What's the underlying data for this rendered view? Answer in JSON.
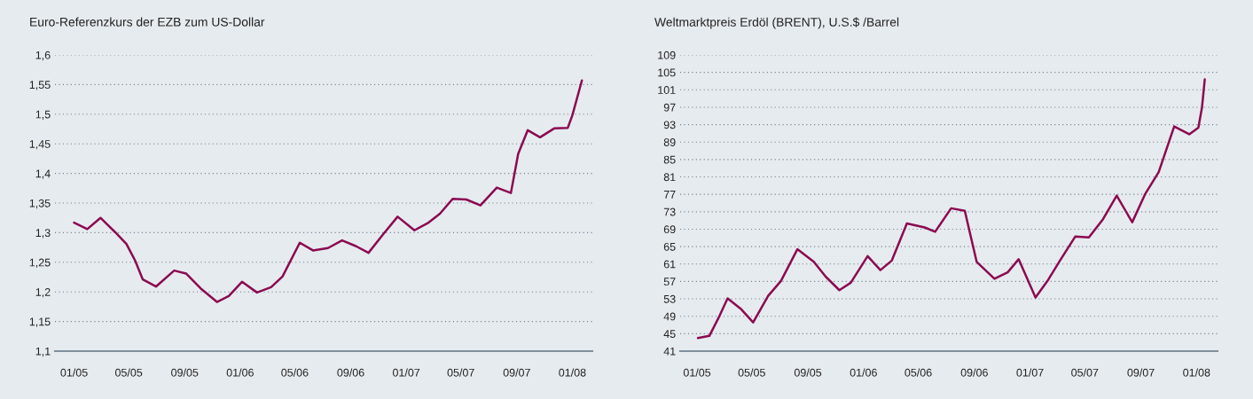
{
  "chart_data": [
    {
      "type": "line",
      "title": "Euro-Referenzkurs der EZB zum US-Dollar",
      "grid": "y",
      "line_style": "solid",
      "xlim": [
        "2004-11-20",
        "2008-02-14"
      ],
      "ylim": [
        1.1,
        1.6
      ],
      "xticks": [
        {
          "value": "2005-01",
          "label": "01/05"
        },
        {
          "value": "2005-05",
          "label": "05/05"
        },
        {
          "value": "2005-09",
          "label": "09/05"
        },
        {
          "value": "2006-01",
          "label": "01/06"
        },
        {
          "value": "2006-05",
          "label": "05/06"
        },
        {
          "value": "2006-09",
          "label": "09/06"
        },
        {
          "value": "2007-01",
          "label": "01/07"
        },
        {
          "value": "2007-05",
          "label": "05/07"
        },
        {
          "value": "2007-09",
          "label": "09/07"
        },
        {
          "value": "2008-01",
          "label": "01/08"
        }
      ],
      "yticks": [
        {
          "value": 1.1,
          "label": "1,1"
        },
        {
          "value": 1.15,
          "label": "1,15"
        },
        {
          "value": 1.2,
          "label": "1,2"
        },
        {
          "value": 1.25,
          "label": "1,25"
        },
        {
          "value": 1.3,
          "label": "1,3"
        },
        {
          "value": 1.35,
          "label": "1,35"
        },
        {
          "value": 1.4,
          "label": "1,4"
        },
        {
          "value": 1.45,
          "label": "1,45"
        },
        {
          "value": 1.5,
          "label": "1,5"
        },
        {
          "value": 1.55,
          "label": "1,55"
        },
        {
          "value": 1.6,
          "label": "1,6"
        }
      ],
      "series": [
        {
          "color": "#8b0a50",
          "x": [
            "2005-01-01",
            "2005-01-30",
            "2005-02-28",
            "2005-04-01",
            "2005-04-26",
            "2005-05-15",
            "2005-06-01",
            "2005-06-30",
            "2005-08-09",
            "2005-09-04",
            "2005-10-06",
            "2005-11-11",
            "2005-12-07",
            "2006-01-05",
            "2006-02-07",
            "2006-03-10",
            "2006-04-04",
            "2006-05-12",
            "2006-06-10",
            "2006-07-13",
            "2006-08-13",
            "2006-09-13",
            "2006-10-10",
            "2006-11-10",
            "2006-12-13",
            "2007-01-19",
            "2007-02-19",
            "2007-03-16",
            "2007-04-13",
            "2007-05-13",
            "2007-06-13",
            "2007-07-19",
            "2007-08-19",
            "2007-09-04",
            "2007-09-25",
            "2007-10-22",
            "2007-11-22",
            "2007-12-22",
            "2008-01-01",
            "2008-01-22"
          ],
          "values": [
            1.317,
            1.306,
            1.325,
            1.301,
            1.281,
            1.253,
            1.221,
            1.209,
            1.236,
            1.231,
            1.206,
            1.183,
            1.193,
            1.217,
            1.199,
            1.208,
            1.226,
            1.283,
            1.27,
            1.274,
            1.287,
            1.277,
            1.266,
            1.296,
            1.327,
            1.304,
            1.317,
            1.332,
            1.357,
            1.356,
            1.346,
            1.376,
            1.367,
            1.433,
            1.473,
            1.461,
            1.476,
            1.477,
            1.498,
            1.557
          ]
        }
      ]
    },
    {
      "type": "line",
      "title": "Weltmarktpreis Erdöl (BRENT), U.S.$ /Barrel",
      "grid": "y",
      "line_style": "solid",
      "xlim": [
        "2004-11-25",
        "2008-02-16"
      ],
      "ylim": [
        41,
        109
      ],
      "xticks": [
        {
          "value": "2005-01",
          "label": "01/05"
        },
        {
          "value": "2005-05",
          "label": "05/05"
        },
        {
          "value": "2005-09",
          "label": "09/05"
        },
        {
          "value": "2006-01",
          "label": "01/06"
        },
        {
          "value": "2006-05",
          "label": "05/06"
        },
        {
          "value": "2006-09",
          "label": "09/06"
        },
        {
          "value": "2007-01",
          "label": "01/07"
        },
        {
          "value": "2007-05",
          "label": "05/07"
        },
        {
          "value": "2007-09",
          "label": "09/07"
        },
        {
          "value": "2008-01",
          "label": "01/08"
        }
      ],
      "yticks": [
        41,
        45,
        49,
        53,
        57,
        61,
        65,
        69,
        73,
        77,
        81,
        85,
        89,
        93,
        97,
        101,
        105,
        109
      ],
      "series": [
        {
          "color": "#8b0a50",
          "x": [
            "2005-01-03",
            "2005-01-28",
            "2005-02-17",
            "2005-03-09",
            "2005-04-08",
            "2005-05-04",
            "2005-06-06",
            "2005-07-04",
            "2005-08-09",
            "2005-09-14",
            "2005-10-10",
            "2005-11-09",
            "2005-12-04",
            "2006-01-10",
            "2006-02-07",
            "2006-03-04",
            "2006-04-06",
            "2006-05-15",
            "2006-06-07",
            "2006-07-12",
            "2006-08-11",
            "2006-09-06",
            "2006-10-15",
            "2006-11-13",
            "2006-12-07",
            "2007-01-13",
            "2007-02-10",
            "2007-03-07",
            "2007-04-10",
            "2007-05-10",
            "2007-06-10",
            "2007-07-10",
            "2007-08-13",
            "2007-09-10",
            "2007-10-10",
            "2007-11-13",
            "2007-12-16",
            "2008-01-05",
            "2008-01-13",
            "2008-01-19"
          ],
          "values": [
            44.0,
            44.5,
            48.6,
            53.1,
            50.6,
            47.6,
            53.7,
            57.1,
            64.4,
            61.5,
            58.1,
            55.0,
            56.7,
            62.8,
            59.6,
            61.8,
            70.3,
            69.4,
            68.4,
            73.8,
            73.2,
            61.5,
            57.6,
            59.1,
            62.1,
            53.3,
            57.4,
            61.7,
            67.3,
            67.1,
            71.3,
            76.7,
            70.6,
            77.0,
            82.1,
            92.6,
            90.8,
            92.3,
            97.0,
            103.4
          ]
        }
      ]
    }
  ]
}
